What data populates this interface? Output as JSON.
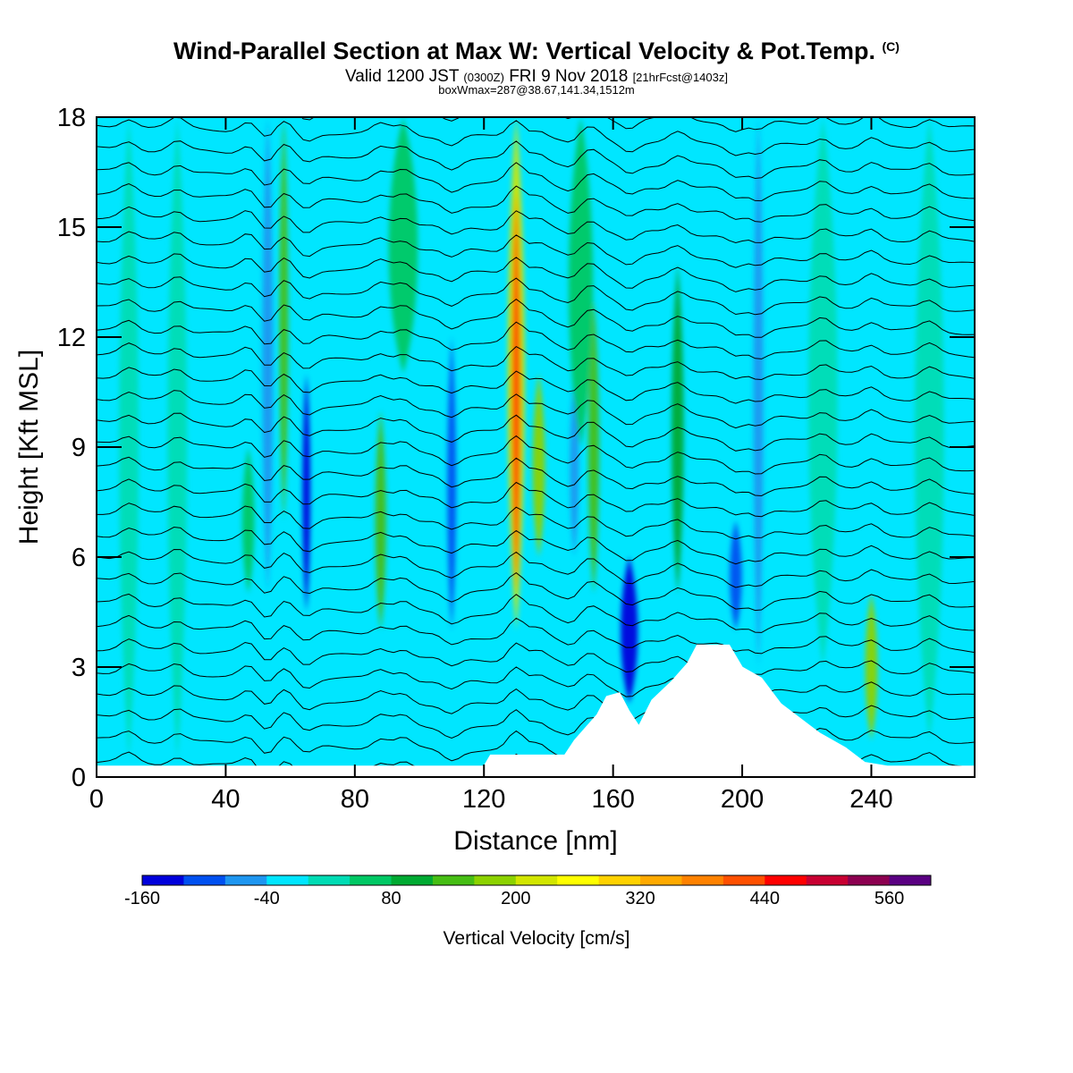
{
  "title": {
    "main": "Wind-Parallel Section at Max W: Vertical Velocity & Pot.Temp.",
    "copyright": "(C)",
    "valid_prefix": "Valid 1200 JST",
    "utc": "(0300Z)",
    "valid_date": "FRI 9 Nov 2018",
    "forecast": "[21hrFcst@1403z]",
    "box_info": "boxWmax=287@38.67,141.34,1512m"
  },
  "colorbar": {
    "title": "Vertical Velocity [cm/s]",
    "tick_labels": [
      "-160",
      "-40",
      "80",
      "200",
      "320",
      "440",
      "560"
    ],
    "levels": [
      -160,
      -120,
      -80,
      -40,
      0,
      40,
      80,
      120,
      160,
      200,
      240,
      280,
      320,
      360,
      400,
      440,
      480,
      520,
      560,
      600
    ],
    "colors": [
      "#0000dc",
      "#0050f0",
      "#1e96f0",
      "#00e6ff",
      "#00dcb4",
      "#00c864",
      "#00aa32",
      "#46be14",
      "#8cd200",
      "#d2e600",
      "#ffff00",
      "#ffd200",
      "#ffaa00",
      "#ff8200",
      "#ff5000",
      "#ff0000",
      "#c80032",
      "#8c0050",
      "#5a0082"
    ]
  },
  "chart_data": {
    "type": "heatmap",
    "xlabel": "Distance [nm]",
    "ylabel": "Height [Kft MSL]",
    "xlim": [
      0,
      272
    ],
    "ylim": [
      0,
      18
    ],
    "x_ticks": [
      0,
      40,
      80,
      120,
      160,
      200,
      240
    ],
    "y_ticks": [
      0,
      3,
      6,
      9,
      12,
      15,
      18
    ],
    "background_value": -20,
    "features": [
      {
        "x": 58,
        "bottom": 7,
        "top": 18,
        "width": 1.8,
        "value": 120
      },
      {
        "x": 53,
        "bottom": 5,
        "top": 18,
        "width": 2.2,
        "value": -80
      },
      {
        "x": 47,
        "bottom": 5,
        "top": 9,
        "width": 2.5,
        "value": 40
      },
      {
        "x": 65,
        "bottom": 4.5,
        "top": 11,
        "width": 1.6,
        "value": -140
      },
      {
        "x": 88,
        "bottom": 4,
        "top": 10,
        "width": 2.2,
        "value": 120
      },
      {
        "x": 110,
        "bottom": 4,
        "top": 12,
        "width": 1.8,
        "value": -100
      },
      {
        "x": 130,
        "bottom": 4,
        "top": 18,
        "width": 3.5,
        "value": 200
      },
      {
        "x": 130,
        "bottom": 5,
        "top": 16,
        "width": 1.8,
        "value": 420
      },
      {
        "x": 137,
        "bottom": 6,
        "top": 11,
        "width": 2.5,
        "value": 160
      },
      {
        "x": 148,
        "bottom": 6,
        "top": 11,
        "width": 1.8,
        "value": -80
      },
      {
        "x": 154,
        "bottom": 5,
        "top": 13,
        "width": 2.2,
        "value": 140
      },
      {
        "x": 165,
        "bottom": 2,
        "top": 6,
        "width": 3.5,
        "value": -160
      },
      {
        "x": 180,
        "bottom": 5,
        "top": 14,
        "width": 2.5,
        "value": 80
      },
      {
        "x": 198,
        "bottom": 4,
        "top": 7,
        "width": 2.5,
        "value": -120
      },
      {
        "x": 205,
        "bottom": 3,
        "top": 18,
        "width": 2,
        "value": -80
      },
      {
        "x": 240,
        "bottom": 1,
        "top": 5,
        "width": 2.5,
        "value": 160
      },
      {
        "x": 10,
        "bottom": 0.5,
        "top": 18,
        "width": 4,
        "value": 20
      },
      {
        "x": 25,
        "bottom": 0.5,
        "top": 18,
        "width": 4,
        "value": 20
      },
      {
        "x": 150,
        "bottom": 9,
        "top": 18,
        "width": 5,
        "value": 40
      },
      {
        "x": 95,
        "bottom": 11,
        "top": 18,
        "width": 6,
        "value": 40
      },
      {
        "x": 225,
        "bottom": 3,
        "top": 18,
        "width": 6,
        "value": 20
      },
      {
        "x": 258,
        "bottom": 1,
        "top": 18,
        "width": 6,
        "value": 30
      }
    ],
    "isentropes": {
      "count": 30,
      "base_height": 0.4,
      "spacing": 0.62,
      "slope_per_nm": -0.0025
    },
    "terrain": [
      {
        "x": 0,
        "h": 0.3
      },
      {
        "x": 120,
        "h": 0.3
      },
      {
        "x": 122,
        "h": 0.6
      },
      {
        "x": 145,
        "h": 0.6
      },
      {
        "x": 148,
        "h": 1.0
      },
      {
        "x": 155,
        "h": 1.7
      },
      {
        "x": 158,
        "h": 2.2
      },
      {
        "x": 162,
        "h": 2.3
      },
      {
        "x": 165,
        "h": 1.8
      },
      {
        "x": 168,
        "h": 1.4
      },
      {
        "x": 172,
        "h": 2.1
      },
      {
        "x": 178,
        "h": 2.6
      },
      {
        "x": 183,
        "h": 3.1
      },
      {
        "x": 186,
        "h": 3.6
      },
      {
        "x": 196,
        "h": 3.6
      },
      {
        "x": 200,
        "h": 3.0
      },
      {
        "x": 206,
        "h": 2.7
      },
      {
        "x": 212,
        "h": 2.0
      },
      {
        "x": 218,
        "h": 1.6
      },
      {
        "x": 224,
        "h": 1.2
      },
      {
        "x": 232,
        "h": 0.8
      },
      {
        "x": 238,
        "h": 0.4
      },
      {
        "x": 245,
        "h": 0.3
      },
      {
        "x": 272,
        "h": 0.3
      }
    ]
  }
}
